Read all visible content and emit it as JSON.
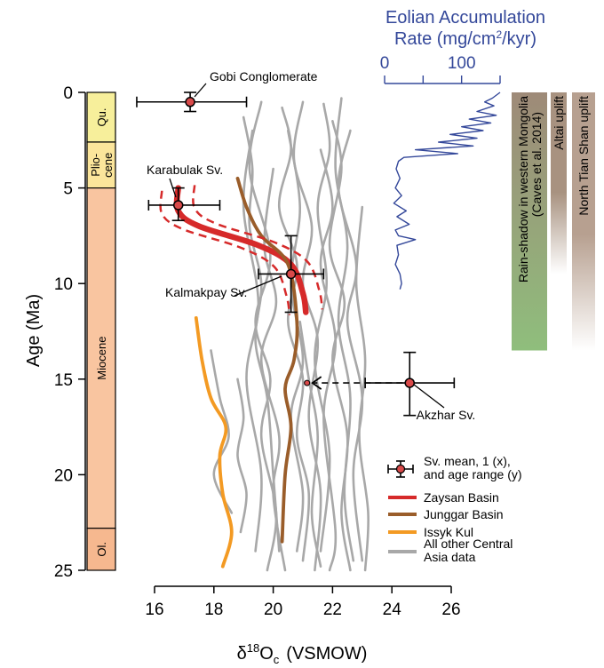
{
  "chart_data": {
    "type": "line",
    "xlabel_base": "δ",
    "xlabel_sup": "18",
    "xlabel_main": "O",
    "xlabel_sub": "c",
    "xlabel_unit": "(VSMOW)",
    "ylabel": "Age (Ma)",
    "xlim": [
      15,
      27
    ],
    "ylim": [
      0,
      25
    ],
    "y_inverted": true,
    "x_ticks": [
      "16",
      "18",
      "20",
      "22",
      "24",
      "26"
    ],
    "y_ticks": [
      "0",
      "5",
      "10",
      "15",
      "20",
      "25"
    ],
    "epochs": [
      {
        "label": "Qu.",
        "from": 0,
        "to": 2.6,
        "color": "#f7ef9b"
      },
      {
        "label": "Plio-cene",
        "line1": "Plio-",
        "line2": "cene",
        "from": 2.6,
        "to": 5.0,
        "color": "#fbe59b"
      },
      {
        "label": "Miocene",
        "from": 5.0,
        "to": 22.8,
        "color": "#f9c5a0"
      },
      {
        "label": "Ol.",
        "from": 22.8,
        "to": 25,
        "color": "#f6b88f"
      }
    ],
    "series": [
      {
        "name": "Zaysan Basin",
        "color": "#d62a2a",
        "points": [
          [
            16.8,
            5.0
          ],
          [
            16.8,
            6.2
          ],
          [
            17.5,
            7.0
          ],
          [
            19.5,
            8.0
          ],
          [
            20.6,
            9.0
          ],
          [
            21.0,
            10.5
          ],
          [
            21.1,
            11.5
          ]
        ]
      },
      {
        "name": "Junggar Basin",
        "color": "#9a5d2a",
        "points": [
          [
            18.8,
            4.5
          ],
          [
            19.1,
            6.0
          ],
          [
            19.6,
            7.5
          ],
          [
            20.5,
            9.0
          ],
          [
            20.8,
            12.0
          ],
          [
            20.7,
            14.0
          ],
          [
            20.4,
            15.5
          ],
          [
            20.6,
            17.5
          ],
          [
            20.4,
            20.0
          ],
          [
            20.3,
            23.5
          ]
        ]
      },
      {
        "name": "Issyk Kul",
        "color": "#f39a23",
        "points": [
          [
            17.4,
            11.8
          ],
          [
            17.6,
            14.0
          ],
          [
            17.9,
            16.0
          ],
          [
            18.4,
            17.5
          ],
          [
            18.2,
            19.0
          ],
          [
            18.3,
            21.0
          ],
          [
            18.6,
            23.0
          ],
          [
            18.3,
            24.8
          ]
        ]
      },
      {
        "name": "All other Central Asia data",
        "color": "#a8a8a8",
        "lines": [
          [
            [
              19.0,
              1.3
            ],
            [
              19.3,
              4.0
            ],
            [
              19.2,
              7.0
            ],
            [
              19.6,
              10.0
            ],
            [
              19.4,
              13.0
            ],
            [
              19.8,
              16.0
            ],
            [
              20.0,
              20.0
            ],
            [
              20.2,
              24.0
            ]
          ],
          [
            [
              20.3,
              0.8
            ],
            [
              20.6,
              3.0
            ],
            [
              20.2,
              6.0
            ],
            [
              20.8,
              9.0
            ],
            [
              20.5,
              12.0
            ],
            [
              21.0,
              15.0
            ],
            [
              20.8,
              18.0
            ],
            [
              21.2,
              21.0
            ],
            [
              21.0,
              24.5
            ]
          ],
          [
            [
              21.0,
              0.5
            ],
            [
              20.7,
              3.5
            ],
            [
              21.3,
              7.0
            ],
            [
              21.0,
              10.0
            ],
            [
              21.5,
              13.0
            ],
            [
              21.2,
              17.0
            ],
            [
              21.6,
              21.0
            ],
            [
              21.4,
              25.0
            ]
          ],
          [
            [
              22.0,
              1.5
            ],
            [
              22.3,
              4.0
            ],
            [
              21.9,
              8.0
            ],
            [
              22.4,
              11.0
            ],
            [
              22.0,
              14.0
            ],
            [
              22.5,
              18.0
            ],
            [
              22.3,
              22.0
            ],
            [
              22.6,
              25.0
            ]
          ],
          [
            [
              22.6,
              2.0
            ],
            [
              22.2,
              5.0
            ],
            [
              22.8,
              9.0
            ],
            [
              22.5,
              12.0
            ],
            [
              23.0,
              16.0
            ],
            [
              22.7,
              20.0
            ],
            [
              23.0,
              24.5
            ]
          ],
          [
            [
              19.6,
              0.5
            ],
            [
              19.2,
              4.0
            ],
            [
              19.9,
              8.5
            ],
            [
              19.4,
              12.0
            ],
            [
              19.9,
              15.0
            ],
            [
              19.6,
              18.0
            ],
            [
              20.1,
              22.0
            ],
            [
              19.8,
              25.0
            ]
          ],
          [
            [
              20.0,
              4.0
            ],
            [
              19.7,
              8.0
            ],
            [
              20.1,
              11.0
            ],
            [
              19.6,
              14.0
            ],
            [
              20.2,
              18.0
            ],
            [
              20.0,
              21.0
            ],
            [
              20.4,
              25.0
            ]
          ],
          [
            [
              21.7,
              0.6
            ],
            [
              21.9,
              3.0
            ],
            [
              21.5,
              6.0
            ],
            [
              21.8,
              10.0
            ],
            [
              21.4,
              14.0
            ],
            [
              21.9,
              19.0
            ],
            [
              21.6,
              24.0
            ]
          ],
          [
            [
              21.6,
              3.0
            ],
            [
              22.0,
              6.0
            ],
            [
              21.6,
              9.0
            ],
            [
              22.1,
              13.0
            ],
            [
              21.7,
              17.0
            ],
            [
              22.1,
              23.0
            ],
            [
              21.9,
              25.0
            ]
          ],
          [
            [
              20.5,
              2.0
            ],
            [
              20.9,
              6.0
            ],
            [
              20.6,
              10.0
            ],
            [
              21.0,
              14.0
            ],
            [
              20.6,
              17.0
            ],
            [
              21.0,
              21.0
            ],
            [
              20.8,
              24.0
            ]
          ],
          [
            [
              22.3,
              0.3
            ],
            [
              22.1,
              4.0
            ],
            [
              22.5,
              8.0
            ],
            [
              22.2,
              12.0
            ],
            [
              22.6,
              16.0
            ],
            [
              22.4,
              21.0
            ],
            [
              22.7,
              24.5
            ]
          ],
          [
            [
              23.0,
              6.0
            ],
            [
              22.8,
              10.0
            ],
            [
              23.1,
              14.0
            ],
            [
              22.9,
              18.0
            ],
            [
              23.2,
              22.0
            ],
            [
              23.1,
              25.0
            ]
          ],
          [
            [
              19.3,
              2.0
            ],
            [
              19.0,
              6.0
            ],
            [
              19.5,
              11.0
            ],
            [
              19.1,
              15.0
            ],
            [
              19.6,
              20.0
            ],
            [
              19.4,
              24.0
            ]
          ],
          [
            [
              18.8,
              15.0
            ],
            [
              19.0,
              17.0
            ],
            [
              18.8,
              19.0
            ],
            [
              19.1,
              21.0
            ],
            [
              18.9,
              23.0
            ]
          ],
          [
            [
              20.9,
              12.0
            ],
            [
              21.2,
              15.0
            ],
            [
              21.5,
              18.0
            ],
            [
              21.3,
              22.0
            ],
            [
              21.6,
              24.8
            ]
          ],
          [
            [
              17.9,
              13.5
            ],
            [
              18.2,
              16.0
            ],
            [
              18.5,
              18.0
            ],
            [
              18.0,
              20.0
            ],
            [
              18.6,
              22.0
            ]
          ]
        ]
      }
    ],
    "means": [
      {
        "name": "Gobi Conglomerate",
        "x": 17.2,
        "y": 0.5,
        "xerr": [
          15.4,
          19.1
        ],
        "yerr": [
          0.0,
          1.0
        ]
      },
      {
        "name": "Karabulak Sv.",
        "x": 16.8,
        "y": 5.9,
        "xerr": [
          15.8,
          18.2
        ],
        "yerr": [
          5.0,
          6.7
        ]
      },
      {
        "name": "Kalmakpay Sv.",
        "x": 20.6,
        "y": 9.5,
        "xerr": [
          19.5,
          21.7
        ],
        "yerr": [
          7.5,
          11.5
        ]
      },
      {
        "name": "Akzhar Sv.",
        "x": 24.6,
        "y": 15.2,
        "xerr": [
          23.1,
          26.1
        ],
        "yerr": [
          13.6,
          16.9
        ]
      }
    ],
    "akzhar_arrow_to": 21.2,
    "eolian": {
      "title_line1": "Eolian Accumulation",
      "title_line2_pre": "Rate (mg/cm",
      "title_line2_sup": "2",
      "title_line2_post": "/kyr)",
      "ticks": [
        "0",
        "100"
      ],
      "xlim": [
        0,
        150
      ],
      "color": "#34489a",
      "points": [
        [
          150,
          0.0
        ],
        [
          140,
          0.3
        ],
        [
          130,
          0.5
        ],
        [
          142,
          0.7
        ],
        [
          120,
          1.0
        ],
        [
          145,
          1.2
        ],
        [
          110,
          1.4
        ],
        [
          138,
          1.6
        ],
        [
          100,
          1.8
        ],
        [
          128,
          2.0
        ],
        [
          85,
          2.2
        ],
        [
          120,
          2.4
        ],
        [
          70,
          2.6
        ],
        [
          115,
          2.8
        ],
        [
          40,
          3.0
        ],
        [
          95,
          3.2
        ],
        [
          25,
          3.4
        ],
        [
          18,
          3.6
        ],
        [
          15,
          4.0
        ],
        [
          20,
          4.5
        ],
        [
          14,
          5.0
        ],
        [
          22,
          5.4
        ],
        [
          12,
          5.8
        ],
        [
          28,
          6.2
        ],
        [
          16,
          6.5
        ],
        [
          32,
          6.9
        ],
        [
          14,
          7.2
        ],
        [
          18,
          7.5
        ],
        [
          40,
          7.7
        ],
        [
          16,
          8.0
        ],
        [
          18,
          8.5
        ],
        [
          14,
          9.0
        ],
        [
          20,
          9.5
        ],
        [
          22,
          10.0
        ],
        [
          20,
          10.3
        ]
      ]
    },
    "bars": [
      {
        "label_line1": "Rain-shadow in western Mongolia",
        "label_line2": "(Caves et al. 2014)",
        "from": 0,
        "to": 13.5,
        "color_top": "#9e8a78",
        "color_bottom": "#8fbe7c"
      },
      {
        "label_line1": "Altai uplift",
        "from": 0,
        "to": 9.5,
        "color_top": "#a89280",
        "color_bottom": "#ffffff"
      },
      {
        "label_line1": "North Tian Shan uplift",
        "from": 0,
        "to": 13.5,
        "color_top": "#b7a090",
        "color_bottom": "#ffffff"
      }
    ],
    "legend": [
      {
        "label_line1": "Sv. mean, 1  (x),",
        "label_line2": "and age range (y)",
        "kind": "errorbar"
      },
      {
        "label_line1": "Zaysan Basin",
        "kind": "line",
        "color": "#d62a2a"
      },
      {
        "label_line1": "Junggar Basin",
        "kind": "line",
        "color": "#9a5d2a"
      },
      {
        "label_line1": "Issyk Kul",
        "kind": "line",
        "color": "#f39a23"
      },
      {
        "label_line1": "All other Central",
        "label_line2": "Asia data",
        "kind": "line",
        "color": "#a8a8a8"
      }
    ]
  }
}
